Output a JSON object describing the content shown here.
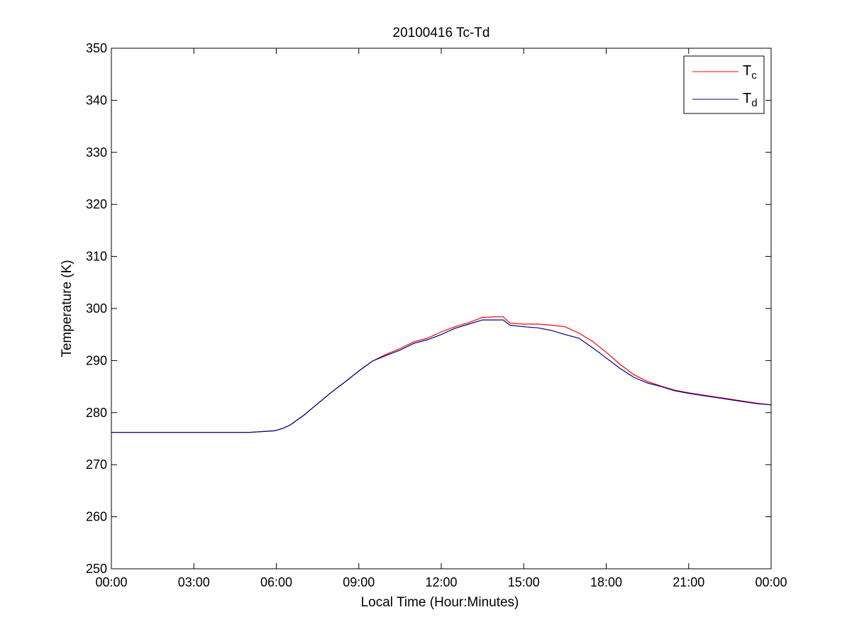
{
  "chart_data": {
    "type": "line",
    "title": "20100416 Tc-Td",
    "xlabel": "Local Time (Hour:Minutes)",
    "ylabel": "Temperature (K)",
    "xlim": [
      0,
      24
    ],
    "ylim": [
      250,
      350
    ],
    "x_ticks": [
      0,
      3,
      6,
      9,
      12,
      15,
      18,
      21,
      24
    ],
    "x_tick_labels": [
      "00:00",
      "03:00",
      "06:00",
      "09:00",
      "12:00",
      "15:00",
      "18:00",
      "21:00",
      "00:00"
    ],
    "y_ticks": [
      250,
      260,
      270,
      280,
      290,
      300,
      310,
      320,
      330,
      340,
      350
    ],
    "y_tick_labels": [
      "250",
      "260",
      "270",
      "280",
      "290",
      "300",
      "310",
      "320",
      "330",
      "340",
      "350"
    ],
    "grid": false,
    "legend_position": "top-right",
    "series": [
      {
        "name": "Tc",
        "legend_main": "T",
        "legend_sub": "c",
        "color": "#ff0000",
        "x": [
          0,
          5.0,
          5.9,
          6.0,
          6.25,
          6.5,
          7.0,
          7.5,
          8.0,
          8.5,
          9.0,
          9.5,
          10.0,
          10.5,
          11.0,
          11.5,
          12.0,
          12.5,
          13.0,
          13.5,
          14.0,
          14.25,
          14.5,
          15.0,
          15.5,
          16.0,
          16.5,
          17.0,
          17.5,
          18.0,
          18.5,
          19.0,
          19.5,
          20.0,
          20.5,
          21.0,
          21.5,
          22.0,
          22.5,
          23.0,
          23.5,
          24.0
        ],
        "y": [
          276.2,
          276.2,
          276.5,
          276.6,
          277.0,
          277.6,
          279.5,
          281.7,
          283.9,
          285.9,
          288.0,
          289.9,
          291.2,
          292.3,
          293.6,
          294.3,
          295.5,
          296.5,
          297.3,
          298.3,
          298.4,
          298.4,
          297.2,
          297.0,
          297.0,
          296.8,
          296.5,
          295.3,
          293.7,
          291.6,
          289.3,
          287.3,
          286.0,
          285.1,
          284.3,
          283.8,
          283.4,
          283.0,
          282.6,
          282.2,
          281.8,
          281.5
        ]
      },
      {
        "name": "Td",
        "legend_main": "T",
        "legend_sub": "d",
        "color": "#00008b",
        "x": [
          0,
          5.0,
          5.9,
          6.0,
          6.25,
          6.5,
          7.0,
          7.5,
          8.0,
          8.5,
          9.0,
          9.5,
          10.0,
          10.5,
          11.0,
          11.5,
          12.0,
          12.5,
          13.0,
          13.5,
          14.0,
          14.25,
          14.5,
          15.0,
          15.5,
          16.0,
          16.5,
          17.0,
          17.5,
          18.0,
          18.5,
          19.0,
          19.5,
          20.0,
          20.5,
          21.0,
          21.5,
          22.0,
          22.5,
          23.0,
          23.5,
          24.0
        ],
        "y": [
          276.2,
          276.2,
          276.5,
          276.6,
          277.0,
          277.6,
          279.5,
          281.7,
          283.9,
          285.9,
          288.0,
          289.9,
          291.0,
          292.0,
          293.3,
          294.0,
          295.0,
          296.2,
          297.0,
          297.8,
          297.8,
          297.8,
          296.8,
          296.5,
          296.3,
          295.8,
          295.0,
          294.3,
          292.5,
          290.5,
          288.5,
          286.8,
          285.7,
          285.0,
          284.2,
          283.7,
          283.3,
          282.9,
          282.5,
          282.1,
          281.7,
          281.5
        ]
      }
    ]
  }
}
